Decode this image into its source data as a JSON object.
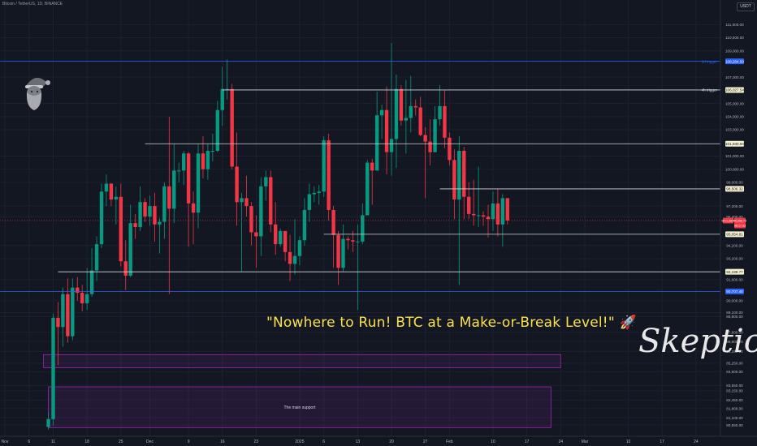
{
  "header": {
    "symbol": "Bitcoin / TetherUS, 1D, BINANCE",
    "currency": "USDT"
  },
  "headline": "\"Nowhere to Run! BTC at a Make-or-Break Level!\" 🚀",
  "signature": "Skeptic",
  "boxes": [
    {
      "name": "upper-demand-box",
      "label": "",
      "y_top": 85900,
      "y_bottom": 84900,
      "x_start": "Nov 9",
      "x_end": "Feb 24",
      "color": "#9c27b0"
    },
    {
      "name": "main-support-box",
      "label": "The main support",
      "y_top": 83450,
      "y_bottom": 80350,
      "x_start": "Nov 10",
      "x_end": "Feb 22",
      "color": "#9c27b0"
    }
  ],
  "levels": [
    {
      "name": "1d-trigger-line",
      "value": 108204.5,
      "label": "1d trigger",
      "price_label": "108,204.50",
      "color": "#2962ff",
      "x_start": "full",
      "tag_bg": "#2962ff",
      "tag_fg": "#ffffff"
    },
    {
      "name": "4h-trigger-line",
      "value": 106027.54,
      "label": "4h trigger",
      "price_label": "106,027.54",
      "color": "#d1d4dc",
      "x_start": "Dec 16",
      "tag_bg": "#f5f0d0",
      "tag_fg": "#131722"
    },
    {
      "name": "resistance-line-101940",
      "value": 101940.94,
      "label": "",
      "price_label": "101,940.94",
      "color": "#d1d4dc",
      "x_start": "Nov 30",
      "tag_bg": "#f5f0d0",
      "tag_fg": "#131722"
    },
    {
      "name": "resistance-line-98506",
      "value": 98506.32,
      "label": "",
      "price_label": "98,506.32",
      "color": "#d1d4dc",
      "x_start": "Jan 30",
      "tag_bg": "#f5f0d0",
      "tag_fg": "#131722"
    },
    {
      "name": "support-line-95054",
      "value": 95054.81,
      "label": "",
      "price_label": "95,054.81",
      "color": "#d1d4dc",
      "x_start": "Jan 6",
      "tag_bg": "#f5f0d0",
      "tag_fg": "#131722"
    },
    {
      "name": "support-line-92199",
      "value": 92199.77,
      "label": "",
      "price_label": "92,199.77",
      "color": "#d1d4dc",
      "x_start": "Nov 12",
      "tag_bg": "#f5f0d0",
      "tag_fg": "#131722"
    },
    {
      "name": "1d-support-line",
      "value": 90707.48,
      "label": "",
      "price_label": "90,707.48",
      "color": "#2962ff",
      "x_start": "full",
      "tag_bg": "#2962ff",
      "tag_fg": "#ffffff"
    }
  ],
  "current_price": {
    "symbol_tag": "BTCUSDT",
    "value": 96098.73,
    "price_label": "96,098.73",
    "countdown": "08:17:33",
    "color": "#f23645"
  },
  "chart_data": {
    "type": "candlestick",
    "title": "",
    "y_axis": {
      "min": 80000,
      "max": 112500,
      "side": "right",
      "ticks": [
        "111,000.00",
        "110,000.00",
        "109,000.00",
        "107,000.00",
        "105,000.00",
        "104,000.00",
        "103,000.00",
        "101,000.00",
        "100,000.00",
        "99,000.00",
        "97,200.00",
        "96,400.00",
        "94,200.00",
        "93,200.00",
        "91,600.00",
        "90,000.00",
        "89,100.00",
        "88,800.00",
        "87,600.00",
        "86,900.00",
        "86,150.00",
        "85,250.00",
        "84,600.00",
        "83,550.00",
        "83,150.00",
        "82,450.00",
        "81,800.00",
        "81,100.00",
        "80,550.00"
      ]
    },
    "x_axis": {
      "ticks": [
        {
          "label": "Nov",
          "date": "2024-11-01"
        },
        {
          "label": "6",
          "date": "2024-11-06"
        },
        {
          "label": "11",
          "date": "2024-11-11"
        },
        {
          "label": "18",
          "date": "2024-11-18"
        },
        {
          "label": "25",
          "date": "2024-11-25"
        },
        {
          "label": "Dec",
          "date": "2024-12-01"
        },
        {
          "label": "9",
          "date": "2024-12-09"
        },
        {
          "label": "16",
          "date": "2024-12-16"
        },
        {
          "label": "23",
          "date": "2024-12-23"
        },
        {
          "label": "2025",
          "date": "2025-01-01"
        },
        {
          "label": "6",
          "date": "2025-01-06"
        },
        {
          "label": "13",
          "date": "2025-01-13"
        },
        {
          "label": "20",
          "date": "2025-01-20"
        },
        {
          "label": "27",
          "date": "2025-01-27"
        },
        {
          "label": "Feb",
          "date": "2025-02-01"
        },
        {
          "label": "10",
          "date": "2025-02-10"
        },
        {
          "label": "17",
          "date": "2025-02-17"
        },
        {
          "label": "24",
          "date": "2025-02-24"
        },
        {
          "label": "Mar",
          "date": "2025-03-01"
        },
        {
          "label": "10",
          "date": "2025-03-10"
        },
        {
          "label": "17",
          "date": "2025-03-17"
        },
        {
          "label": "24",
          "date": "2025-03-24"
        }
      ]
    },
    "up_color": "#089981",
    "down_color": "#f23645",
    "candles": [
      {
        "date": "2024-11-10",
        "o": 80400,
        "h": 81500,
        "l": 80200,
        "c": 81000
      },
      {
        "date": "2024-11-11",
        "o": 81000,
        "h": 89000,
        "l": 80500,
        "c": 88700
      },
      {
        "date": "2024-11-12",
        "o": 88700,
        "h": 89900,
        "l": 85100,
        "c": 88000
      },
      {
        "date": "2024-11-13",
        "o": 88000,
        "h": 91000,
        "l": 86500,
        "c": 90500
      },
      {
        "date": "2024-11-14",
        "o": 90500,
        "h": 91700,
        "l": 86800,
        "c": 87300
      },
      {
        "date": "2024-11-15",
        "o": 87300,
        "h": 91700,
        "l": 87000,
        "c": 91000
      },
      {
        "date": "2024-11-16",
        "o": 91000,
        "h": 91800,
        "l": 90000,
        "c": 90600
      },
      {
        "date": "2024-11-17",
        "o": 90600,
        "h": 91200,
        "l": 89200,
        "c": 89800
      },
      {
        "date": "2024-11-18",
        "o": 89800,
        "h": 92500,
        "l": 89300,
        "c": 90500
      },
      {
        "date": "2024-11-19",
        "o": 90500,
        "h": 94000,
        "l": 90300,
        "c": 92300
      },
      {
        "date": "2024-11-20",
        "o": 92300,
        "h": 94900,
        "l": 91500,
        "c": 94300
      },
      {
        "date": "2024-11-21",
        "o": 94300,
        "h": 98900,
        "l": 94000,
        "c": 98300
      },
      {
        "date": "2024-11-22",
        "o": 98300,
        "h": 99600,
        "l": 97200,
        "c": 98900
      },
      {
        "date": "2024-11-23",
        "o": 98900,
        "h": 98950,
        "l": 97200,
        "c": 97700
      },
      {
        "date": "2024-11-24",
        "o": 97700,
        "h": 98700,
        "l": 95800,
        "c": 97900
      },
      {
        "date": "2024-11-25",
        "o": 97900,
        "h": 98900,
        "l": 92600,
        "c": 93000
      },
      {
        "date": "2024-11-26",
        "o": 93000,
        "h": 94600,
        "l": 90800,
        "c": 91900
      },
      {
        "date": "2024-11-27",
        "o": 91900,
        "h": 97300,
        "l": 91800,
        "c": 95900
      },
      {
        "date": "2024-11-28",
        "o": 95900,
        "h": 96600,
        "l": 94700,
        "c": 95600
      },
      {
        "date": "2024-11-29",
        "o": 95600,
        "h": 98700,
        "l": 95300,
        "c": 97500
      },
      {
        "date": "2024-11-30",
        "o": 97500,
        "h": 97800,
        "l": 96000,
        "c": 96400
      },
      {
        "date": "2024-12-01",
        "o": 96400,
        "h": 98000,
        "l": 95700,
        "c": 97200
      },
      {
        "date": "2024-12-02",
        "o": 97200,
        "h": 98200,
        "l": 94500,
        "c": 95800
      },
      {
        "date": "2024-12-03",
        "o": 95800,
        "h": 96300,
        "l": 93600,
        "c": 96000
      },
      {
        "date": "2024-12-04",
        "o": 96000,
        "h": 99000,
        "l": 94700,
        "c": 98700
      },
      {
        "date": "2024-12-05",
        "o": 98700,
        "h": 104000,
        "l": 90500,
        "c": 97000
      },
      {
        "date": "2024-12-06",
        "o": 97000,
        "h": 101900,
        "l": 95900,
        "c": 99900
      },
      {
        "date": "2024-12-07",
        "o": 99900,
        "h": 100500,
        "l": 99000,
        "c": 99900
      },
      {
        "date": "2024-12-08",
        "o": 99900,
        "h": 101400,
        "l": 98800,
        "c": 101200
      },
      {
        "date": "2024-12-09",
        "o": 101200,
        "h": 101300,
        "l": 94100,
        "c": 97400
      },
      {
        "date": "2024-12-10",
        "o": 97400,
        "h": 98300,
        "l": 94300,
        "c": 96700
      },
      {
        "date": "2024-12-11",
        "o": 96700,
        "h": 101900,
        "l": 95500,
        "c": 101200
      },
      {
        "date": "2024-12-12",
        "o": 101200,
        "h": 102500,
        "l": 99300,
        "c": 100000
      },
      {
        "date": "2024-12-13",
        "o": 100000,
        "h": 101900,
        "l": 99200,
        "c": 101400
      },
      {
        "date": "2024-12-14",
        "o": 101400,
        "h": 102700,
        "l": 100600,
        "c": 101400
      },
      {
        "date": "2024-12-15",
        "o": 101400,
        "h": 105200,
        "l": 101300,
        "c": 104500
      },
      {
        "date": "2024-12-16",
        "o": 104500,
        "h": 107800,
        "l": 103300,
        "c": 106100
      },
      {
        "date": "2024-12-17",
        "o": 106100,
        "h": 108350,
        "l": 105300,
        "c": 106100
      },
      {
        "date": "2024-12-18",
        "o": 106100,
        "h": 106500,
        "l": 100000,
        "c": 100200
      },
      {
        "date": "2024-12-19",
        "o": 100200,
        "h": 102800,
        "l": 95700,
        "c": 97500
      },
      {
        "date": "2024-12-20",
        "o": 97500,
        "h": 98200,
        "l": 92200,
        "c": 97800
      },
      {
        "date": "2024-12-21",
        "o": 97800,
        "h": 99500,
        "l": 96400,
        "c": 97200
      },
      {
        "date": "2024-12-22",
        "o": 97200,
        "h": 97500,
        "l": 94200,
        "c": 95200
      },
      {
        "date": "2024-12-23",
        "o": 95200,
        "h": 96500,
        "l": 92500,
        "c": 94900
      },
      {
        "date": "2024-12-24",
        "o": 94900,
        "h": 99400,
        "l": 93400,
        "c": 98700
      },
      {
        "date": "2024-12-25",
        "o": 98700,
        "h": 99900,
        "l": 97600,
        "c": 99400
      },
      {
        "date": "2024-12-26",
        "o": 99400,
        "h": 99900,
        "l": 95200,
        "c": 95800
      },
      {
        "date": "2024-12-27",
        "o": 95800,
        "h": 97500,
        "l": 93500,
        "c": 94300
      },
      {
        "date": "2024-12-28",
        "o": 94300,
        "h": 95500,
        "l": 94100,
        "c": 95300
      },
      {
        "date": "2024-12-29",
        "o": 95300,
        "h": 95300,
        "l": 93000,
        "c": 93700
      },
      {
        "date": "2024-12-30",
        "o": 93700,
        "h": 95000,
        "l": 91500,
        "c": 92800
      },
      {
        "date": "2024-12-31",
        "o": 92800,
        "h": 96200,
        "l": 92000,
        "c": 93400
      },
      {
        "date": "2025-01-01",
        "o": 93400,
        "h": 94900,
        "l": 92700,
        "c": 94600
      },
      {
        "date": "2025-01-02",
        "o": 94600,
        "h": 97800,
        "l": 94200,
        "c": 96900
      },
      {
        "date": "2025-01-03",
        "o": 96900,
        "h": 98900,
        "l": 96000,
        "c": 98100
      },
      {
        "date": "2025-01-04",
        "o": 98100,
        "h": 98700,
        "l": 97500,
        "c": 98200
      },
      {
        "date": "2025-01-05",
        "o": 98200,
        "h": 98800,
        "l": 97300,
        "c": 98300
      },
      {
        "date": "2025-01-06",
        "o": 98300,
        "h": 102500,
        "l": 97900,
        "c": 102200
      },
      {
        "date": "2025-01-07",
        "o": 102200,
        "h": 102700,
        "l": 96100,
        "c": 96900
      },
      {
        "date": "2025-01-08",
        "o": 96900,
        "h": 97200,
        "l": 92500,
        "c": 95000
      },
      {
        "date": "2025-01-09",
        "o": 95000,
        "h": 95300,
        "l": 91200,
        "c": 92500
      },
      {
        "date": "2025-01-10",
        "o": 92500,
        "h": 95800,
        "l": 92200,
        "c": 94700
      },
      {
        "date": "2025-01-11",
        "o": 94700,
        "h": 94900,
        "l": 93900,
        "c": 94600
      },
      {
        "date": "2025-01-12",
        "o": 94600,
        "h": 95300,
        "l": 93700,
        "c": 94500
      },
      {
        "date": "2025-01-13",
        "o": 94500,
        "h": 95800,
        "l": 89300,
        "c": 94500
      },
      {
        "date": "2025-01-14",
        "o": 94500,
        "h": 97400,
        "l": 94300,
        "c": 96500
      },
      {
        "date": "2025-01-15",
        "o": 96500,
        "h": 100700,
        "l": 96500,
        "c": 100500
      },
      {
        "date": "2025-01-16",
        "o": 100500,
        "h": 100800,
        "l": 97300,
        "c": 99900
      },
      {
        "date": "2025-01-17",
        "o": 99900,
        "h": 105900,
        "l": 99900,
        "c": 104100
      },
      {
        "date": "2025-01-18",
        "o": 104100,
        "h": 104900,
        "l": 102300,
        "c": 104500
      },
      {
        "date": "2025-01-19",
        "o": 104500,
        "h": 106300,
        "l": 99600,
        "c": 101300
      },
      {
        "date": "2025-01-20",
        "o": 101300,
        "h": 109600,
        "l": 99500,
        "c": 102300
      },
      {
        "date": "2025-01-21",
        "o": 102300,
        "h": 107200,
        "l": 100100,
        "c": 106100
      },
      {
        "date": "2025-01-22",
        "o": 106100,
        "h": 106400,
        "l": 103300,
        "c": 103700
      },
      {
        "date": "2025-01-23",
        "o": 103700,
        "h": 106800,
        "l": 101200,
        "c": 103900
      },
      {
        "date": "2025-01-24",
        "o": 103900,
        "h": 107100,
        "l": 102800,
        "c": 104800
      },
      {
        "date": "2025-01-25",
        "o": 104800,
        "h": 105300,
        "l": 104100,
        "c": 104700
      },
      {
        "date": "2025-01-26",
        "o": 104700,
        "h": 105500,
        "l": 102500,
        "c": 102600
      },
      {
        "date": "2025-01-27",
        "o": 102600,
        "h": 103200,
        "l": 97800,
        "c": 102100
      },
      {
        "date": "2025-01-28",
        "o": 102100,
        "h": 103800,
        "l": 100300,
        "c": 101300
      },
      {
        "date": "2025-01-29",
        "o": 101300,
        "h": 104800,
        "l": 101300,
        "c": 103800
      },
      {
        "date": "2025-01-30",
        "o": 103800,
        "h": 106400,
        "l": 103300,
        "c": 104800
      },
      {
        "date": "2025-01-31",
        "o": 104800,
        "h": 106000,
        "l": 101600,
        "c": 102400
      },
      {
        "date": "2025-02-01",
        "o": 102400,
        "h": 102800,
        "l": 100300,
        "c": 100700
      },
      {
        "date": "2025-02-02",
        "o": 100700,
        "h": 101500,
        "l": 96200,
        "c": 97700
      },
      {
        "date": "2025-02-03",
        "o": 97700,
        "h": 102500,
        "l": 91200,
        "c": 101400
      },
      {
        "date": "2025-02-04",
        "o": 101400,
        "h": 101700,
        "l": 96200,
        "c": 97900
      },
      {
        "date": "2025-02-05",
        "o": 97900,
        "h": 99000,
        "l": 96200,
        "c": 96600
      },
      {
        "date": "2025-02-06",
        "o": 96600,
        "h": 99200,
        "l": 95700,
        "c": 96500
      },
      {
        "date": "2025-02-07",
        "o": 96500,
        "h": 100200,
        "l": 95600,
        "c": 96500
      },
      {
        "date": "2025-02-08",
        "o": 96500,
        "h": 96800,
        "l": 95700,
        "c": 96400
      },
      {
        "date": "2025-02-09",
        "o": 96400,
        "h": 97300,
        "l": 94800,
        "c": 96200
      },
      {
        "date": "2025-02-10",
        "o": 96200,
        "h": 98300,
        "l": 95300,
        "c": 97400
      },
      {
        "date": "2025-02-11",
        "o": 97400,
        "h": 98500,
        "l": 94900,
        "c": 95800
      },
      {
        "date": "2025-02-12",
        "o": 95800,
        "h": 98100,
        "l": 94100,
        "c": 97800
      },
      {
        "date": "2025-02-13",
        "o": 97800,
        "h": 97800,
        "l": 95800,
        "c": 96100
      }
    ]
  }
}
